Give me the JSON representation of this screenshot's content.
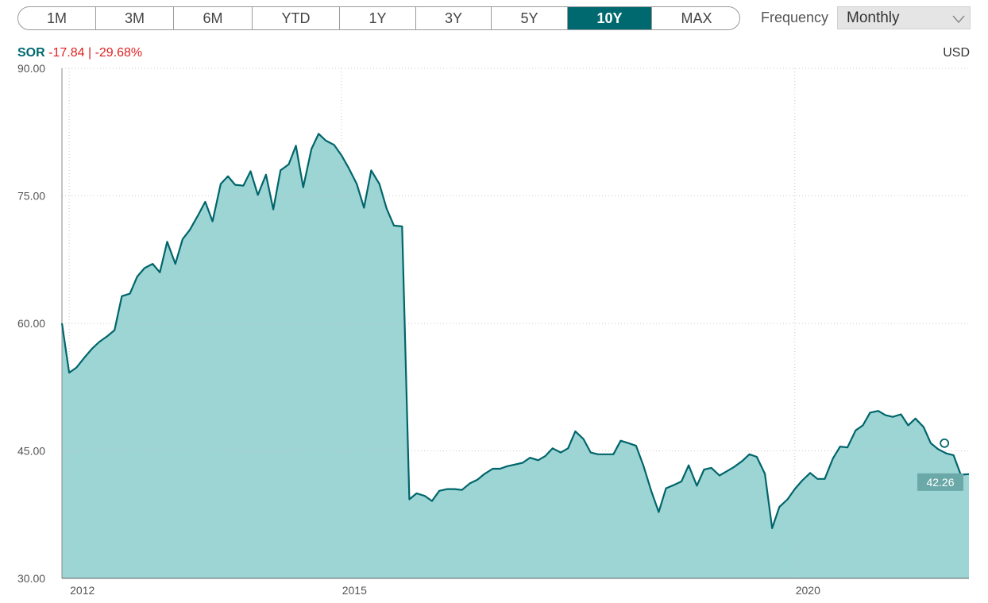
{
  "range_buttons": [
    {
      "label": "1M",
      "active": false
    },
    {
      "label": "3M",
      "active": false
    },
    {
      "label": "6M",
      "active": false
    },
    {
      "label": "YTD",
      "active": false
    },
    {
      "label": "1Y",
      "active": false
    },
    {
      "label": "3Y",
      "active": false
    },
    {
      "label": "5Y",
      "active": false
    },
    {
      "label": "10Y",
      "active": true
    },
    {
      "label": "MAX",
      "active": false
    }
  ],
  "frequency": {
    "label": "Frequency",
    "value": "Monthly"
  },
  "ticker": {
    "symbol": "SOR",
    "change": "-17.84",
    "separator": "|",
    "change_pct": "-29.68%"
  },
  "currency": "USD",
  "colors": {
    "line": "#00656b",
    "fill": "#9dd5d5",
    "active": "#00696f",
    "negative": "#e02020"
  },
  "chart_data": {
    "type": "area",
    "title": "",
    "xlabel": "",
    "ylabel": "",
    "ylim": [
      30,
      90
    ],
    "xlim": [
      2011.92,
      2021.92
    ],
    "y_ticks": [
      "90.00",
      "75.00",
      "60.00",
      "45.00",
      "30.00"
    ],
    "x_ticks": [
      {
        "label": "2012",
        "value": 2012.0
      },
      {
        "label": "2015",
        "value": 2015.0
      },
      {
        "label": "2020",
        "value": 2020.0
      }
    ],
    "grid": true,
    "last_value_label": "42.26",
    "marker": {
      "x": 2021.65,
      "y": 45.9
    },
    "series": [
      {
        "name": "SOR",
        "x": [
          2011.92,
          2012.0,
          2012.08,
          2012.17,
          2012.25,
          2012.33,
          2012.42,
          2012.5,
          2012.58,
          2012.67,
          2012.75,
          2012.83,
          2012.92,
          2013.0,
          2013.08,
          2013.17,
          2013.25,
          2013.33,
          2013.42,
          2013.5,
          2013.58,
          2013.67,
          2013.75,
          2013.83,
          2013.92,
          2014.0,
          2014.08,
          2014.17,
          2014.25,
          2014.33,
          2014.42,
          2014.5,
          2014.58,
          2014.67,
          2014.75,
          2014.83,
          2014.92,
          2015.0,
          2015.08,
          2015.17,
          2015.25,
          2015.33,
          2015.42,
          2015.5,
          2015.58,
          2015.67,
          2015.75,
          2015.83,
          2015.92,
          2016.0,
          2016.08,
          2016.17,
          2016.25,
          2016.33,
          2016.42,
          2016.5,
          2016.58,
          2016.67,
          2016.75,
          2016.83,
          2016.92,
          2017.0,
          2017.08,
          2017.17,
          2017.25,
          2017.33,
          2017.42,
          2017.5,
          2017.58,
          2017.67,
          2017.75,
          2017.83,
          2017.92,
          2018.0,
          2018.08,
          2018.17,
          2018.25,
          2018.33,
          2018.42,
          2018.5,
          2018.58,
          2018.67,
          2018.75,
          2018.83,
          2018.92,
          2019.0,
          2019.08,
          2019.17,
          2019.25,
          2019.33,
          2019.42,
          2019.5,
          2019.58,
          2019.67,
          2019.75,
          2019.83,
          2019.92,
          2020.0,
          2020.08,
          2020.17,
          2020.25,
          2020.33,
          2020.42,
          2020.5,
          2020.58,
          2020.67,
          2020.75,
          2020.83,
          2020.92,
          2021.0,
          2021.08,
          2021.17,
          2021.25,
          2021.33,
          2021.42,
          2021.5,
          2021.58,
          2021.67,
          2021.75,
          2021.83,
          2021.92
        ],
        "values": [
          60.0,
          54.2,
          54.8,
          56.0,
          57.0,
          57.8,
          58.5,
          59.2,
          63.2,
          63.5,
          65.5,
          66.5,
          67.0,
          66.0,
          69.6,
          67.0,
          69.9,
          71.0,
          72.7,
          74.3,
          72.0,
          76.4,
          77.3,
          76.3,
          76.2,
          77.9,
          75.1,
          77.5,
          73.4,
          78.0,
          78.7,
          80.9,
          76.0,
          80.5,
          82.3,
          81.5,
          81.0,
          79.8,
          78.3,
          76.4,
          73.6,
          78.0,
          76.4,
          73.5,
          71.5,
          71.4,
          39.3,
          40.0,
          39.7,
          39.1,
          40.3,
          40.5,
          40.5,
          40.4,
          41.2,
          41.6,
          42.3,
          42.9,
          42.9,
          43.2,
          43.4,
          43.6,
          44.2,
          43.9,
          44.4,
          45.3,
          44.8,
          45.3,
          47.3,
          46.4,
          44.8,
          44.6,
          44.6,
          44.6,
          46.2,
          45.9,
          45.6,
          43.3,
          40.2,
          37.8,
          40.6,
          41.0,
          41.4,
          43.3,
          40.9,
          42.8,
          43.0,
          42.1,
          42.6,
          43.1,
          43.8,
          44.6,
          44.3,
          42.3,
          35.9,
          38.4,
          39.3,
          40.5,
          41.5,
          42.4,
          41.7,
          41.7,
          44.1,
          45.5,
          45.4,
          47.4,
          48.0,
          49.5,
          49.7,
          49.2,
          49.0,
          49.3,
          48.0,
          48.8,
          47.8,
          45.9,
          45.2,
          44.7,
          44.5,
          42.2,
          42.26
        ]
      }
    ]
  }
}
